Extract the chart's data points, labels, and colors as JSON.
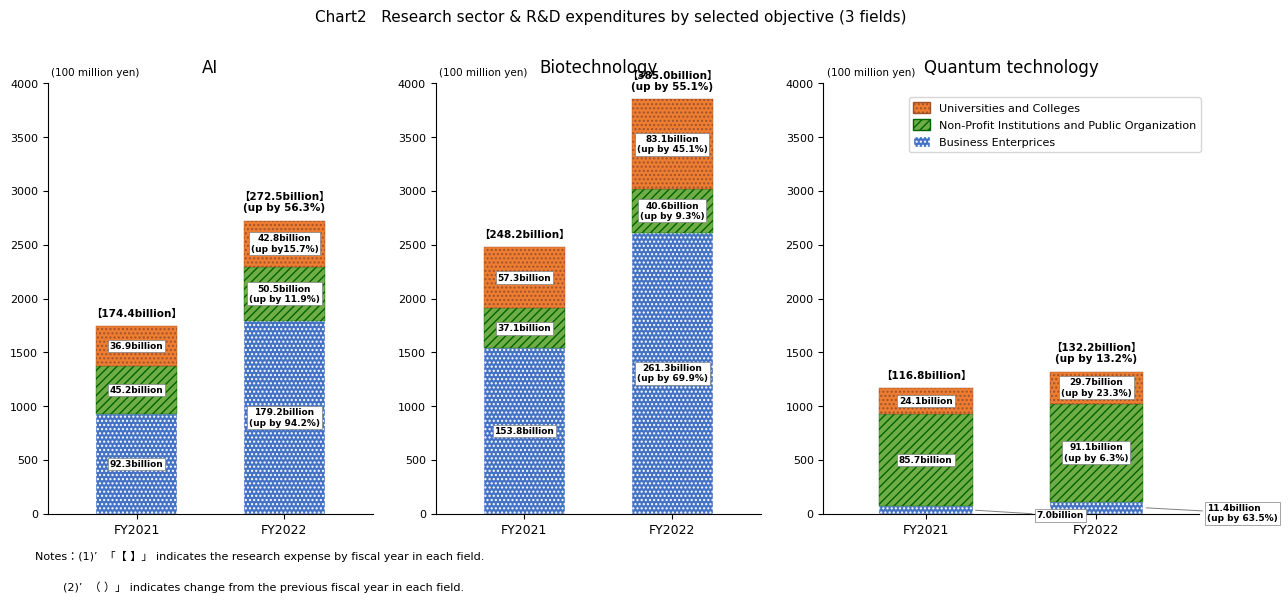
{
  "title": "Chart2   Research sector & R&D expenditures by selected objective (3 fields)",
  "fields": [
    "AI",
    "Biotechnology",
    "Quantum technology"
  ],
  "years": [
    "FY2021",
    "FY2022"
  ],
  "colors": {
    "business": "#4472C4",
    "nonprofit": "#70AD47",
    "universities": "#ED7D31"
  },
  "AI": {
    "FY2021": {
      "business": 923,
      "nonprofit": 452,
      "universities": 369,
      "total_label": "【174.4billion】",
      "total_sub": ""
    },
    "FY2022": {
      "business": 1792,
      "nonprofit": 505,
      "universities": 428,
      "total_label": "【272.5billion】",
      "total_sub": "(up by 56.3%)"
    }
  },
  "Biotechnology": {
    "FY2021": {
      "business": 1538,
      "nonprofit": 371,
      "universities": 573,
      "total_label": "【248.2billion】",
      "total_sub": ""
    },
    "FY2022": {
      "business": 2613,
      "nonprofit": 406,
      "universities": 831,
      "total_label": "【385.0billion】",
      "total_sub": "(up by 55.1%)"
    }
  },
  "Quantum technology": {
    "FY2021": {
      "business": 70,
      "nonprofit": 857,
      "universities": 241,
      "total_label": "【116.8billion】",
      "total_sub": ""
    },
    "FY2022": {
      "business": 114,
      "nonprofit": 911,
      "universities": 297,
      "total_label": "【132.2billion】",
      "total_sub": "(up by 13.2%)"
    }
  },
  "bar_labels": {
    "AI": {
      "FY2021": {
        "business": "92.3billion",
        "nonprofit": "45.2billion",
        "universities": "36.9billion"
      },
      "FY2022": {
        "business": "179.2billion\n(up by 94.2%)",
        "nonprofit": "50.5billion\n(up by 11.9%)",
        "universities": "42.8billion\n(up by15.7%)"
      }
    },
    "Biotechnology": {
      "FY2021": {
        "business": "153.8billion",
        "nonprofit": "37.1billion",
        "universities": "57.3billion"
      },
      "FY2022": {
        "business": "261.3billion\n(up by 69.9%)",
        "nonprofit": "40.6billion\n(up by 9.3%)",
        "universities": "83.1billion\n(up by 45.1%)"
      }
    },
    "Quantum technology": {
      "FY2021": {
        "business": "7.0billion",
        "nonprofit": "85.7billion",
        "universities": "24.1billion"
      },
      "FY2022": {
        "business": "11.4billion\n(up by 63.5%)",
        "nonprofit": "91.1billion\n(up by 6.3%)",
        "universities": "29.7billion\n(up by 23.3%)"
      }
    }
  },
  "ylim": [
    0,
    4000
  ],
  "yticks": [
    0,
    500,
    1000,
    1500,
    2000,
    2500,
    3000,
    3500,
    4000
  ],
  "bar_width": 0.55,
  "legend_entries": [
    "Universities and Colleges",
    "Non-Profit Institutions and Public Organization",
    "Business Enterprices"
  ],
  "notes_line1": "Notes：(1)’  「【 】」 indicates the research expense by fiscal year in each field.",
  "notes_line2": "        (2)’  （ ）」 indicates change from the previous fiscal year in each field."
}
